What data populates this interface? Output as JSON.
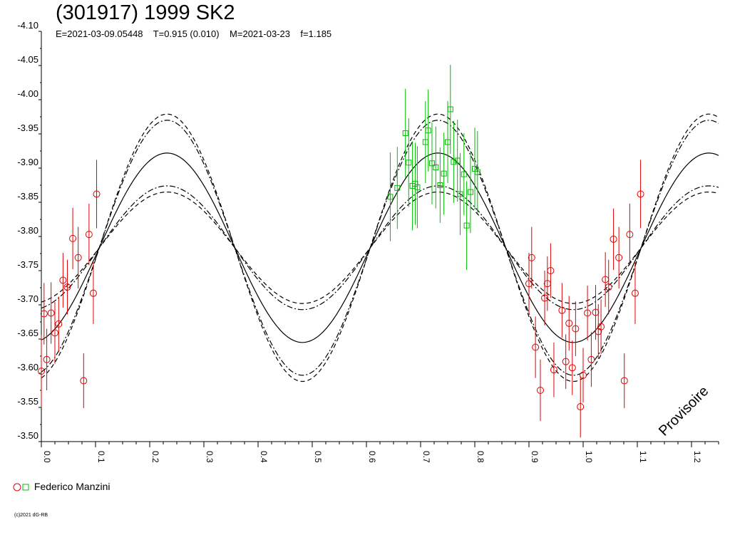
{
  "chart_data": {
    "type": "scatter",
    "title": "(301917) 1999 SK2",
    "subtitle": "E=2021-03-09.05448    T=0.915 (0.010)    M=2021-03-23    f=1.185",
    "watermark": "Provisoire",
    "copyright": "(c)2021 dG-RB",
    "xlim": [
      0.0,
      1.25
    ],
    "ylim": [
      -4.1,
      -3.5
    ],
    "y_inverted": true,
    "x_ticks": [
      "0.0",
      "0.1",
      "0.2",
      "0.3",
      "0.4",
      "0.5",
      "0.6",
      "0.7",
      "0.8",
      "0.9",
      "1.0",
      "1.1",
      "1.2"
    ],
    "y_ticks": [
      "-4.10",
      "-4.05",
      "-4.00",
      "-3.95",
      "-3.90",
      "-3.85",
      "-3.80",
      "-3.75",
      "-3.70",
      "-3.65",
      "-3.60",
      "-3.55",
      "-3.50"
    ],
    "legend": {
      "observer": "Federico Manzini",
      "placement": "bottom-left"
    },
    "fit": {
      "period_phase_offset": 0.5,
      "center": -3.7835,
      "amplitude": 0.1385,
      "peak_phase": 0.232,
      "dashdot_band": 0.048,
      "dashed_band": 0.057
    },
    "series": [
      {
        "marker": "circle",
        "color": "#dd0000",
        "points": [
          [
            -3.603,
            0.053
          ],
          [
            -3.687,
            0.045
          ],
          [
            -3.62,
            0.045
          ],
          [
            -3.688,
            0.045
          ],
          [
            -3.659,
            0.045
          ],
          [
            -3.672,
            0.04
          ],
          [
            -3.736,
            0.04
          ],
          [
            -3.726,
            0.04
          ],
          [
            -3.797,
            0.045
          ],
          [
            -3.769,
            0.045
          ],
          [
            -3.589,
            0.04
          ],
          [
            -3.803,
            0.045
          ],
          [
            -3.717,
            0.045
          ],
          [
            -3.862,
            0.05
          ],
          [
            -3.731,
            0.045
          ],
          [
            -3.769,
            0.045
          ],
          [
            -3.638,
            0.045
          ],
          [
            -3.575,
            0.045
          ],
          [
            -3.71,
            0.04
          ],
          [
            -3.731,
            0.04
          ],
          [
            -3.75,
            0.04
          ],
          [
            -3.605,
            0.04
          ],
          [
            -3.692,
            0.04
          ],
          [
            -3.617,
            0.04
          ],
          [
            -3.673,
            0.04
          ],
          [
            -3.608,
            0.04
          ],
          [
            -3.665,
            0.04
          ],
          [
            -3.551,
            0.045
          ],
          [
            -3.597,
            0.04
          ],
          [
            -3.688,
            0.04
          ],
          [
            -3.62,
            0.04
          ],
          [
            -3.689,
            0.04
          ],
          [
            -3.661,
            0.04
          ],
          [
            -3.668,
            0.04
          ],
          [
            -3.737,
            0.04
          ],
          [
            -3.726,
            0.04
          ],
          [
            -3.796,
            0.045
          ],
          [
            -3.769,
            0.045
          ],
          [
            -3.589,
            0.04
          ],
          [
            -3.803,
            0.045
          ],
          [
            -3.717,
            0.045
          ],
          [
            -3.862,
            0.05
          ]
        ],
        "phases": [
          0.0,
          0.005,
          0.01,
          0.018,
          0.025,
          0.032,
          0.04,
          0.048,
          0.058,
          0.068,
          0.078,
          0.088,
          0.096,
          0.102,
          0.9,
          0.905,
          0.912,
          0.921,
          0.929,
          0.934,
          0.94,
          0.946,
          0.961,
          0.968,
          0.974,
          0.98,
          0.986,
          0.995,
          1.0,
          1.008,
          1.015,
          1.023,
          1.028,
          1.033,
          1.041,
          1.047,
          1.056,
          1.066,
          1.076,
          1.086,
          1.096,
          1.106
        ]
      },
      {
        "marker": "square",
        "color": "#00bb00",
        "points": [
          [
            -3.858,
            0.065
          ],
          [
            -3.871,
            0.06
          ],
          [
            -3.951,
            0.065
          ],
          [
            -3.908,
            0.065
          ],
          [
            -3.874,
            0.065
          ],
          [
            -3.877,
            0.06
          ],
          [
            -3.872,
            0.06
          ],
          [
            -3.938,
            0.06
          ],
          [
            -3.955,
            0.06
          ],
          [
            -3.907,
            0.06
          ],
          [
            -3.901,
            0.06
          ],
          [
            -3.875,
            0.055
          ],
          [
            -3.892,
            0.06
          ],
          [
            -3.938,
            0.06
          ],
          [
            -3.986,
            0.065
          ],
          [
            -3.909,
            0.06
          ],
          [
            -3.911,
            0.06
          ],
          [
            -3.862,
            0.06
          ],
          [
            -3.891,
            0.06
          ],
          [
            -3.816,
            0.065
          ],
          [
            -3.865,
            0.06
          ],
          [
            -3.899,
            0.06
          ],
          [
            -3.894,
            0.06
          ]
        ],
        "phases": [
          0.644,
          0.657,
          0.672,
          0.678,
          0.685,
          0.69,
          0.694,
          0.709,
          0.714,
          0.721,
          0.728,
          0.736,
          0.743,
          0.75,
          0.755,
          0.761,
          0.768,
          0.773,
          0.78,
          0.785,
          0.792,
          0.8,
          0.805
        ]
      }
    ]
  }
}
